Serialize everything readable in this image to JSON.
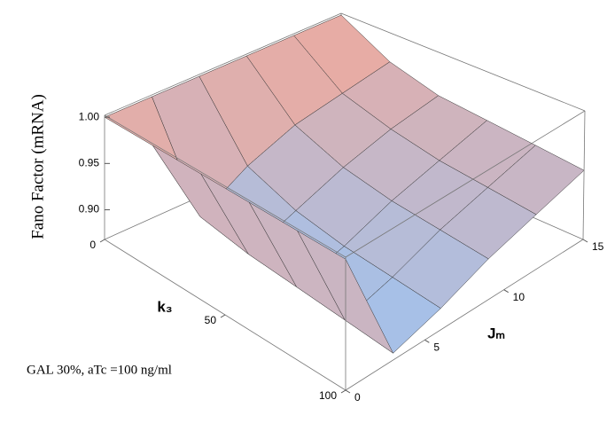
{
  "chart_data": {
    "type": "surface",
    "zlabel": "Fano Factor (mRNA)",
    "xlabel": "k₃",
    "ylabel": "Jₘ",
    "annotation": "GAL 30%, aTc =100 ng/ml",
    "x": [
      0,
      20,
      40,
      60,
      80,
      100
    ],
    "y": [
      0,
      3,
      6,
      9,
      12,
      15
    ],
    "z": [
      [
        1.0,
        1.0,
        1.0,
        1.0,
        1.0,
        1.0
      ],
      [
        1.0,
        0.9,
        0.93,
        0.95,
        0.96,
        0.97
      ],
      [
        1.0,
        0.89,
        0.91,
        0.93,
        0.945,
        0.955
      ],
      [
        1.0,
        0.885,
        0.9,
        0.92,
        0.935,
        0.95
      ],
      [
        1.0,
        0.88,
        0.895,
        0.915,
        0.93,
        0.945
      ],
      [
        1.0,
        0.875,
        0.89,
        0.91,
        0.925,
        0.94
      ]
    ],
    "xlim": [
      0,
      100
    ],
    "xticks": [
      0,
      50,
      100
    ],
    "ylim": [
      0,
      15
    ],
    "yticks": [
      0,
      5,
      10,
      15
    ],
    "zlim": [
      0.868,
      1.002
    ],
    "zticks": [
      {
        "value": 0.9,
        "label": "0.90"
      },
      {
        "value": 0.95,
        "label": "0.95"
      },
      {
        "value": 1.0,
        "label": "1.00"
      }
    ],
    "colors": [
      "#9cc4f2",
      "#f4a898"
    ]
  }
}
